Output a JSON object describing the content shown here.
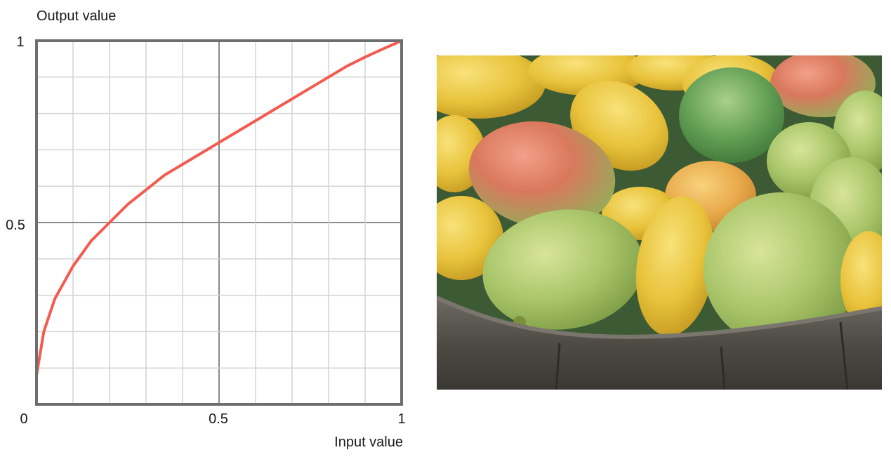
{
  "chart_data": {
    "type": "line",
    "title": "",
    "xlabel": "Input value",
    "ylabel": "Output value",
    "xlim": [
      0,
      1
    ],
    "ylim": [
      0,
      1
    ],
    "x_ticks": [
      "0",
      "0.5",
      "1"
    ],
    "y_ticks": [
      "0",
      "0.5",
      "1"
    ],
    "grid": true,
    "line_color": "#f25c50",
    "series": [
      {
        "x": [
          0.0,
          0.02,
          0.05,
          0.1,
          0.15,
          0.2,
          0.25,
          0.3,
          0.35,
          0.4,
          0.45,
          0.5,
          0.55,
          0.6,
          0.65,
          0.7,
          0.75,
          0.8,
          0.85,
          0.9,
          0.95,
          1.0
        ],
        "y": [
          0.08,
          0.2,
          0.29,
          0.38,
          0.45,
          0.5,
          0.55,
          0.59,
          0.63,
          0.66,
          0.69,
          0.72,
          0.75,
          0.78,
          0.81,
          0.84,
          0.87,
          0.9,
          0.93,
          0.955,
          0.978,
          1.0
        ]
      }
    ]
  },
  "photo": {
    "subject": "mangoes-in-basket-photo"
  }
}
